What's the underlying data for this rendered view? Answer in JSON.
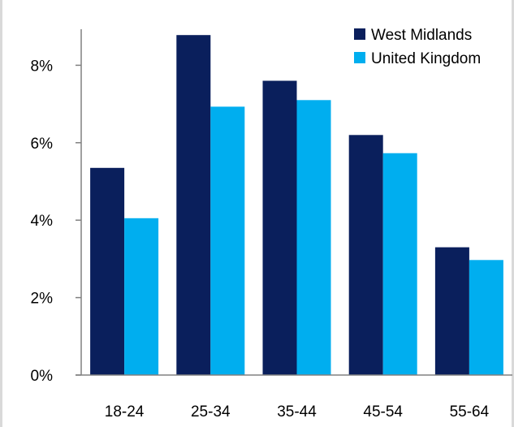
{
  "chart_data": {
    "type": "bar",
    "title": "",
    "xlabel": "",
    "ylabel": "",
    "categories": [
      "18-24",
      "25-34",
      "35-44",
      "45-54",
      "55-64"
    ],
    "series": [
      {
        "name": "West Midlands",
        "color": "#0a1f5c",
        "values": [
          5.35,
          8.78,
          7.6,
          6.2,
          3.3
        ]
      },
      {
        "name": "United Kingdom",
        "color": "#00aeef",
        "values": [
          4.05,
          6.93,
          7.1,
          5.73,
          2.97
        ]
      }
    ],
    "ylim": [
      0,
      9
    ],
    "yticks": [
      {
        "value": 0,
        "label": "0%"
      },
      {
        "value": 2,
        "label": "2%"
      },
      {
        "value": 4,
        "label": "4%"
      },
      {
        "value": 6,
        "label": "6%"
      },
      {
        "value": 8,
        "label": "8%"
      }
    ],
    "legend_position": "top-right",
    "grid": false
  }
}
